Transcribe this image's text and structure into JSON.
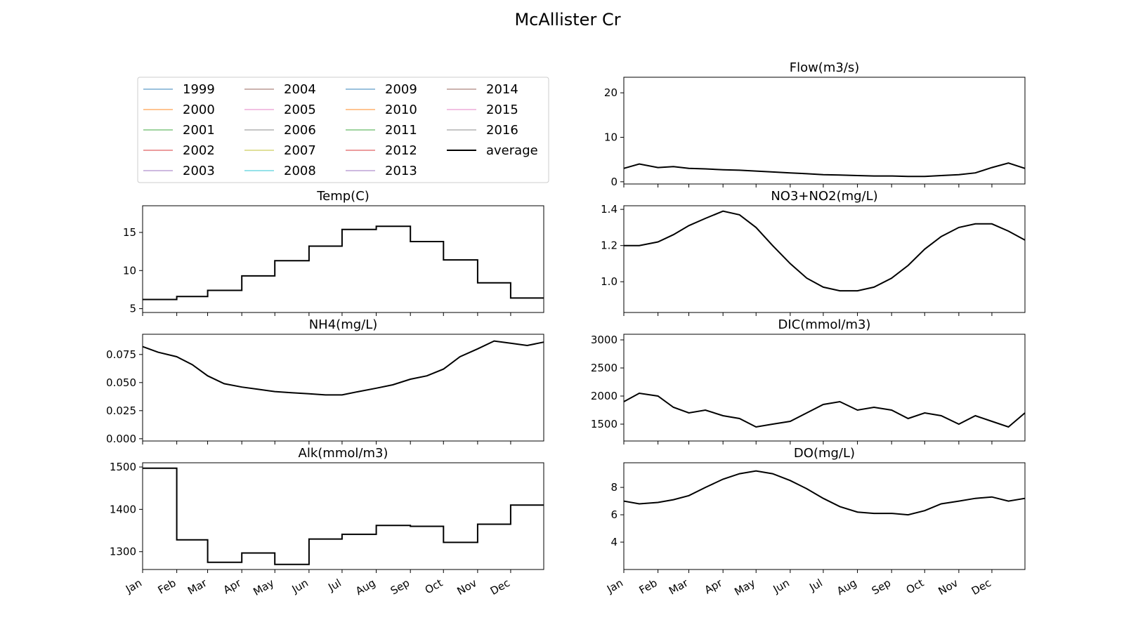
{
  "figure": {
    "title": "McAllister Cr"
  },
  "legend": {
    "placement": "top-left",
    "columns": 4,
    "entries": [
      {
        "label": "1999",
        "color": "#1f77b4"
      },
      {
        "label": "2000",
        "color": "#ff7f0e"
      },
      {
        "label": "2001",
        "color": "#2ca02c"
      },
      {
        "label": "2002",
        "color": "#d62728"
      },
      {
        "label": "2003",
        "color": "#9467bd"
      },
      {
        "label": "2004",
        "color": "#8c564b"
      },
      {
        "label": "2005",
        "color": "#e377c2"
      },
      {
        "label": "2006",
        "color": "#7f7f7f"
      },
      {
        "label": "2007",
        "color": "#bcbd22"
      },
      {
        "label": "2008",
        "color": "#17becf"
      },
      {
        "label": "2009",
        "color": "#1f77b4"
      },
      {
        "label": "2010",
        "color": "#ff7f0e"
      },
      {
        "label": "2011",
        "color": "#2ca02c"
      },
      {
        "label": "2012",
        "color": "#d62728"
      },
      {
        "label": "2013",
        "color": "#9467bd"
      },
      {
        "label": "2014",
        "color": "#8c564b"
      },
      {
        "label": "2015",
        "color": "#e377c2"
      },
      {
        "label": "2016",
        "color": "#7f7f7f"
      },
      {
        "label": "average",
        "color": "#000000"
      }
    ]
  },
  "chart_data": [
    {
      "type": "line",
      "title": "Temp(C)",
      "x_ticks": [
        "Jan",
        "Feb",
        "Mar",
        "Apr",
        "May",
        "Jun",
        "Jul",
        "Aug",
        "Sep",
        "Oct",
        "Nov",
        "Dec"
      ],
      "show_x_labels": false,
      "yticks": [
        5,
        10,
        15
      ],
      "ylim": [
        4.5,
        18.5
      ],
      "series": [
        {
          "name": "average",
          "x": [
            1,
            32,
            60,
            91,
            121,
            152,
            182,
            213,
            244,
            274,
            305,
            335,
            365
          ],
          "values": [
            6.2,
            6.6,
            7.4,
            9.3,
            11.3,
            13.2,
            15.4,
            15.8,
            13.8,
            11.4,
            8.4,
            6.4,
            6.4
          ]
        }
      ]
    },
    {
      "type": "line",
      "title": "NH4(mg/L)",
      "x_ticks": [
        "Jan",
        "Feb",
        "Mar",
        "Apr",
        "May",
        "Jun",
        "Jul",
        "Aug",
        "Sep",
        "Oct",
        "Nov",
        "Dec"
      ],
      "show_x_labels": false,
      "yticks": [
        0.0,
        0.025,
        0.05,
        0.075
      ],
      "ylim": [
        -0.002,
        0.093
      ],
      "series": [
        {
          "name": "average",
          "x": [
            1,
            15,
            32,
            46,
            60,
            75,
            91,
            106,
            121,
            136,
            152,
            167,
            182,
            197,
            213,
            228,
            244,
            259,
            274,
            289,
            305,
            320,
            335,
            350,
            365
          ],
          "values": [
            0.082,
            0.077,
            0.073,
            0.066,
            0.056,
            0.049,
            0.046,
            0.044,
            0.042,
            0.041,
            0.04,
            0.039,
            0.039,
            0.042,
            0.045,
            0.048,
            0.053,
            0.056,
            0.062,
            0.073,
            0.08,
            0.087,
            0.085,
            0.083,
            0.086
          ]
        }
      ]
    },
    {
      "type": "line",
      "title": "Alk(mmol/m3)",
      "x_ticks": [
        "Jan",
        "Feb",
        "Mar",
        "Apr",
        "May",
        "Jun",
        "Jul",
        "Aug",
        "Sep",
        "Oct",
        "Nov",
        "Dec"
      ],
      "show_x_labels": true,
      "yticks": [
        1300,
        1400,
        1500
      ],
      "ylim": [
        1258,
        1510
      ],
      "series": [
        {
          "name": "average",
          "x": [
            1,
            32,
            60,
            91,
            121,
            152,
            182,
            213,
            244,
            274,
            305,
            335,
            365
          ],
          "values": [
            1497,
            1328,
            1275,
            1297,
            1270,
            1330,
            1341,
            1362,
            1360,
            1322,
            1365,
            1410,
            1410
          ]
        }
      ]
    },
    {
      "type": "line",
      "title": "Flow(m3/s)",
      "x_ticks": [
        "Jan",
        "Feb",
        "Mar",
        "Apr",
        "May",
        "Jun",
        "Jul",
        "Aug",
        "Sep",
        "Oct",
        "Nov",
        "Dec"
      ],
      "show_x_labels": false,
      "yticks": [
        0,
        10,
        20
      ],
      "ylim": [
        -0.5,
        23.5
      ],
      "series": [
        {
          "name": "average",
          "x": [
            1,
            15,
            32,
            46,
            60,
            75,
            91,
            106,
            121,
            136,
            152,
            167,
            182,
            197,
            213,
            228,
            244,
            259,
            274,
            289,
            305,
            320,
            335,
            350,
            365
          ],
          "values": [
            3.0,
            4.0,
            3.2,
            3.4,
            3.0,
            2.9,
            2.7,
            2.6,
            2.4,
            2.2,
            2.0,
            1.8,
            1.6,
            1.5,
            1.4,
            1.3,
            1.3,
            1.2,
            1.2,
            1.4,
            1.6,
            2.0,
            3.2,
            4.2,
            3.0
          ]
        }
      ]
    },
    {
      "type": "line",
      "title": "NO3+NO2(mg/L)",
      "x_ticks": [
        "Jan",
        "Feb",
        "Mar",
        "Apr",
        "May",
        "Jun",
        "Jul",
        "Aug",
        "Sep",
        "Oct",
        "Nov",
        "Dec"
      ],
      "show_x_labels": false,
      "yticks": [
        1.0,
        1.2,
        1.4
      ],
      "ylim": [
        0.83,
        1.42
      ],
      "series": [
        {
          "name": "average",
          "x": [
            1,
            15,
            32,
            46,
            60,
            75,
            91,
            106,
            121,
            136,
            152,
            167,
            182,
            197,
            213,
            228,
            244,
            259,
            274,
            289,
            305,
            320,
            335,
            350,
            365
          ],
          "values": [
            1.2,
            1.2,
            1.22,
            1.26,
            1.31,
            1.35,
            1.39,
            1.37,
            1.3,
            1.2,
            1.1,
            1.02,
            0.97,
            0.95,
            0.95,
            0.97,
            1.02,
            1.09,
            1.18,
            1.25,
            1.3,
            1.32,
            1.32,
            1.28,
            1.23
          ]
        }
      ]
    },
    {
      "type": "line",
      "title": "DIC(mmol/m3)",
      "x_ticks": [
        "Jan",
        "Feb",
        "Mar",
        "Apr",
        "May",
        "Jun",
        "Jul",
        "Aug",
        "Sep",
        "Oct",
        "Nov",
        "Dec"
      ],
      "show_x_labels": false,
      "yticks": [
        1500,
        2000,
        2500,
        3000
      ],
      "ylim": [
        1200,
        3100
      ],
      "series": [
        {
          "name": "average",
          "x": [
            1,
            15,
            32,
            46,
            60,
            75,
            91,
            106,
            121,
            136,
            152,
            167,
            182,
            197,
            213,
            228,
            244,
            259,
            274,
            289,
            305,
            320,
            335,
            350,
            365
          ],
          "values": [
            1900,
            2050,
            2000,
            1800,
            1700,
            1750,
            1650,
            1600,
            1450,
            1500,
            1550,
            1700,
            1850,
            1900,
            1750,
            1800,
            1750,
            1600,
            1700,
            1650,
            1500,
            1650,
            1550,
            1450,
            1700
          ]
        }
      ]
    },
    {
      "type": "line",
      "title": "DO(mg/L)",
      "x_ticks": [
        "Jan",
        "Feb",
        "Mar",
        "Apr",
        "May",
        "Jun",
        "Jul",
        "Aug",
        "Sep",
        "Oct",
        "Nov",
        "Dec"
      ],
      "show_x_labels": true,
      "yticks": [
        4,
        6,
        8
      ],
      "ylim": [
        2.0,
        9.8
      ],
      "series": [
        {
          "name": "average",
          "x": [
            1,
            15,
            32,
            46,
            60,
            75,
            91,
            106,
            121,
            136,
            152,
            167,
            182,
            197,
            213,
            228,
            244,
            259,
            274,
            289,
            305,
            320,
            335,
            350,
            365
          ],
          "values": [
            7.0,
            6.8,
            6.9,
            7.1,
            7.4,
            8.0,
            8.6,
            9.0,
            9.2,
            9.0,
            8.5,
            7.9,
            7.2,
            6.6,
            6.2,
            6.1,
            6.1,
            6.0,
            6.3,
            6.8,
            7.0,
            7.2,
            7.3,
            7.0,
            7.2
          ]
        }
      ]
    }
  ]
}
